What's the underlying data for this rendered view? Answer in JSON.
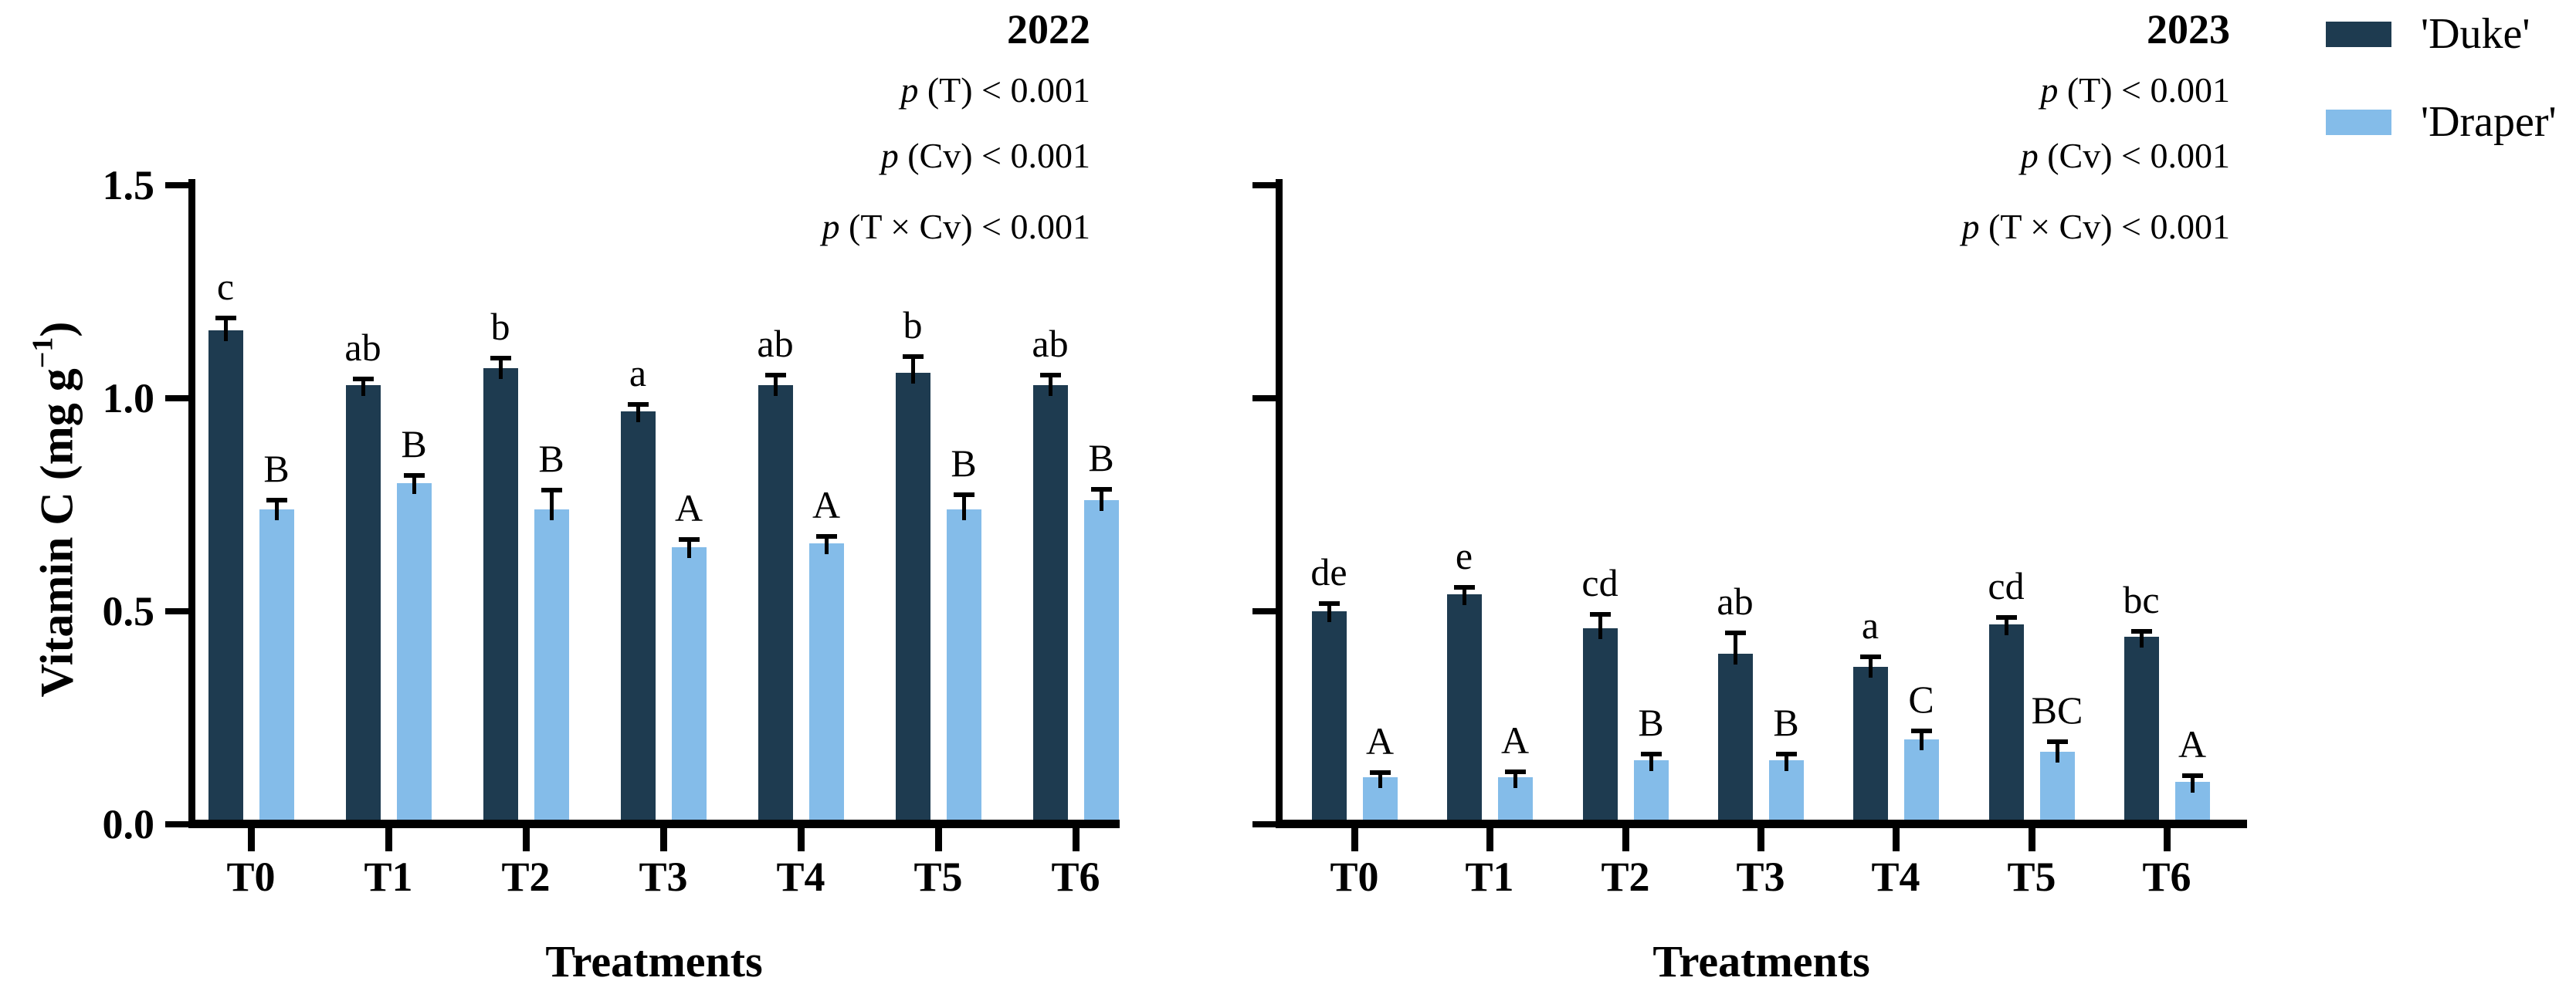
{
  "figure": {
    "y_axis": {
      "label_main": "Vitamin C (mg g",
      "label_sup": "−1",
      "label_close": ")",
      "ticks": [
        "1.5",
        "1.0",
        "0.5",
        "0.0"
      ]
    },
    "x_axis": {
      "label": "Treatments",
      "categories": [
        "T0",
        "T1",
        "T2",
        "T3",
        "T4",
        "T5",
        "T6"
      ]
    },
    "legend": {
      "items": [
        {
          "label": "'Duke'",
          "color": "#1e3b50"
        },
        {
          "label": "'Draper'",
          "color": "#84bce9"
        }
      ]
    },
    "panels": [
      {
        "title": "2022",
        "p_values": [
          {
            "sym": "p",
            "rest": " (T) < 0.001"
          },
          {
            "sym": "p",
            "rest": " (Cv) < 0.001"
          },
          {
            "sym": "p",
            "rest": " (T × Cv) < 0.001"
          }
        ]
      },
      {
        "title": "2023",
        "p_values": [
          {
            "sym": "p",
            "rest": " (T) < 0.001"
          },
          {
            "sym": "p",
            "rest": " (Cv) < 0.001"
          },
          {
            "sym": "p",
            "rest": " (T × Cv) < 0.001"
          }
        ]
      }
    ]
  },
  "chart_data": [
    {
      "type": "bar",
      "title": "2022",
      "categories": [
        "T0",
        "T1",
        "T2",
        "T3",
        "T4",
        "T5",
        "T6"
      ],
      "series": [
        {
          "name": "'Duke'",
          "color": "#1e3b50",
          "values": [
            1.16,
            1.03,
            1.07,
            0.97,
            1.03,
            1.06,
            1.03
          ],
          "errors": [
            0.025,
            0.012,
            0.02,
            0.012,
            0.02,
            0.035,
            0.02
          ],
          "letters": [
            "c",
            "ab",
            "b",
            "a",
            "ab",
            "b",
            "ab"
          ]
        },
        {
          "name": "'Draper'",
          "color": "#84bce9",
          "values": [
            0.74,
            0.8,
            0.74,
            0.65,
            0.66,
            0.74,
            0.76
          ],
          "errors": [
            0.018,
            0.015,
            0.04,
            0.015,
            0.012,
            0.03,
            0.022
          ],
          "letters": [
            "B",
            "B",
            "B",
            "A",
            "A",
            "B",
            "B"
          ]
        }
      ],
      "xlabel": "Treatments",
      "ylabel": "Vitamin C (mg g⁻¹)",
      "ylim": [
        0,
        1.5
      ],
      "yticks": [
        1.5,
        1.0,
        0.5,
        0.0
      ],
      "ytick_labels_visible": true,
      "annotations": [
        "p (T) < 0.001",
        "p (Cv) < 0.001",
        "p (T × Cv) < 0.001"
      ],
      "legend_position": "top-right-outside",
      "grid": false
    },
    {
      "type": "bar",
      "title": "2023",
      "categories": [
        "T0",
        "T1",
        "T2",
        "T3",
        "T4",
        "T5",
        "T6"
      ],
      "series": [
        {
          "name": "'Duke'",
          "color": "#1e3b50",
          "values": [
            0.5,
            0.54,
            0.46,
            0.4,
            0.37,
            0.47,
            0.44
          ],
          "errors": [
            0.015,
            0.012,
            0.03,
            0.045,
            0.02,
            0.012,
            0.01
          ],
          "letters": [
            "de",
            "e",
            "cd",
            "ab",
            "a",
            "cd",
            "bc"
          ]
        },
        {
          "name": "'Draper'",
          "color": "#84bce9",
          "values": [
            0.11,
            0.11,
            0.15,
            0.15,
            0.2,
            0.17,
            0.1
          ],
          "errors": [
            0.008,
            0.01,
            0.012,
            0.012,
            0.015,
            0.02,
            0.01
          ],
          "letters": [
            "A",
            "A",
            "B",
            "B",
            "C",
            "BC",
            "A"
          ]
        }
      ],
      "xlabel": "Treatments",
      "ylabel": "Vitamin C (mg g⁻¹)",
      "ylim": [
        0,
        1.5
      ],
      "yticks": [
        1.5,
        1.0,
        0.5,
        0.0
      ],
      "ytick_labels_visible": false,
      "annotations": [
        "p (T) < 0.001",
        "p (Cv) < 0.001",
        "p (T × Cv) < 0.001"
      ],
      "legend_position": "top-right-outside",
      "grid": false
    }
  ]
}
